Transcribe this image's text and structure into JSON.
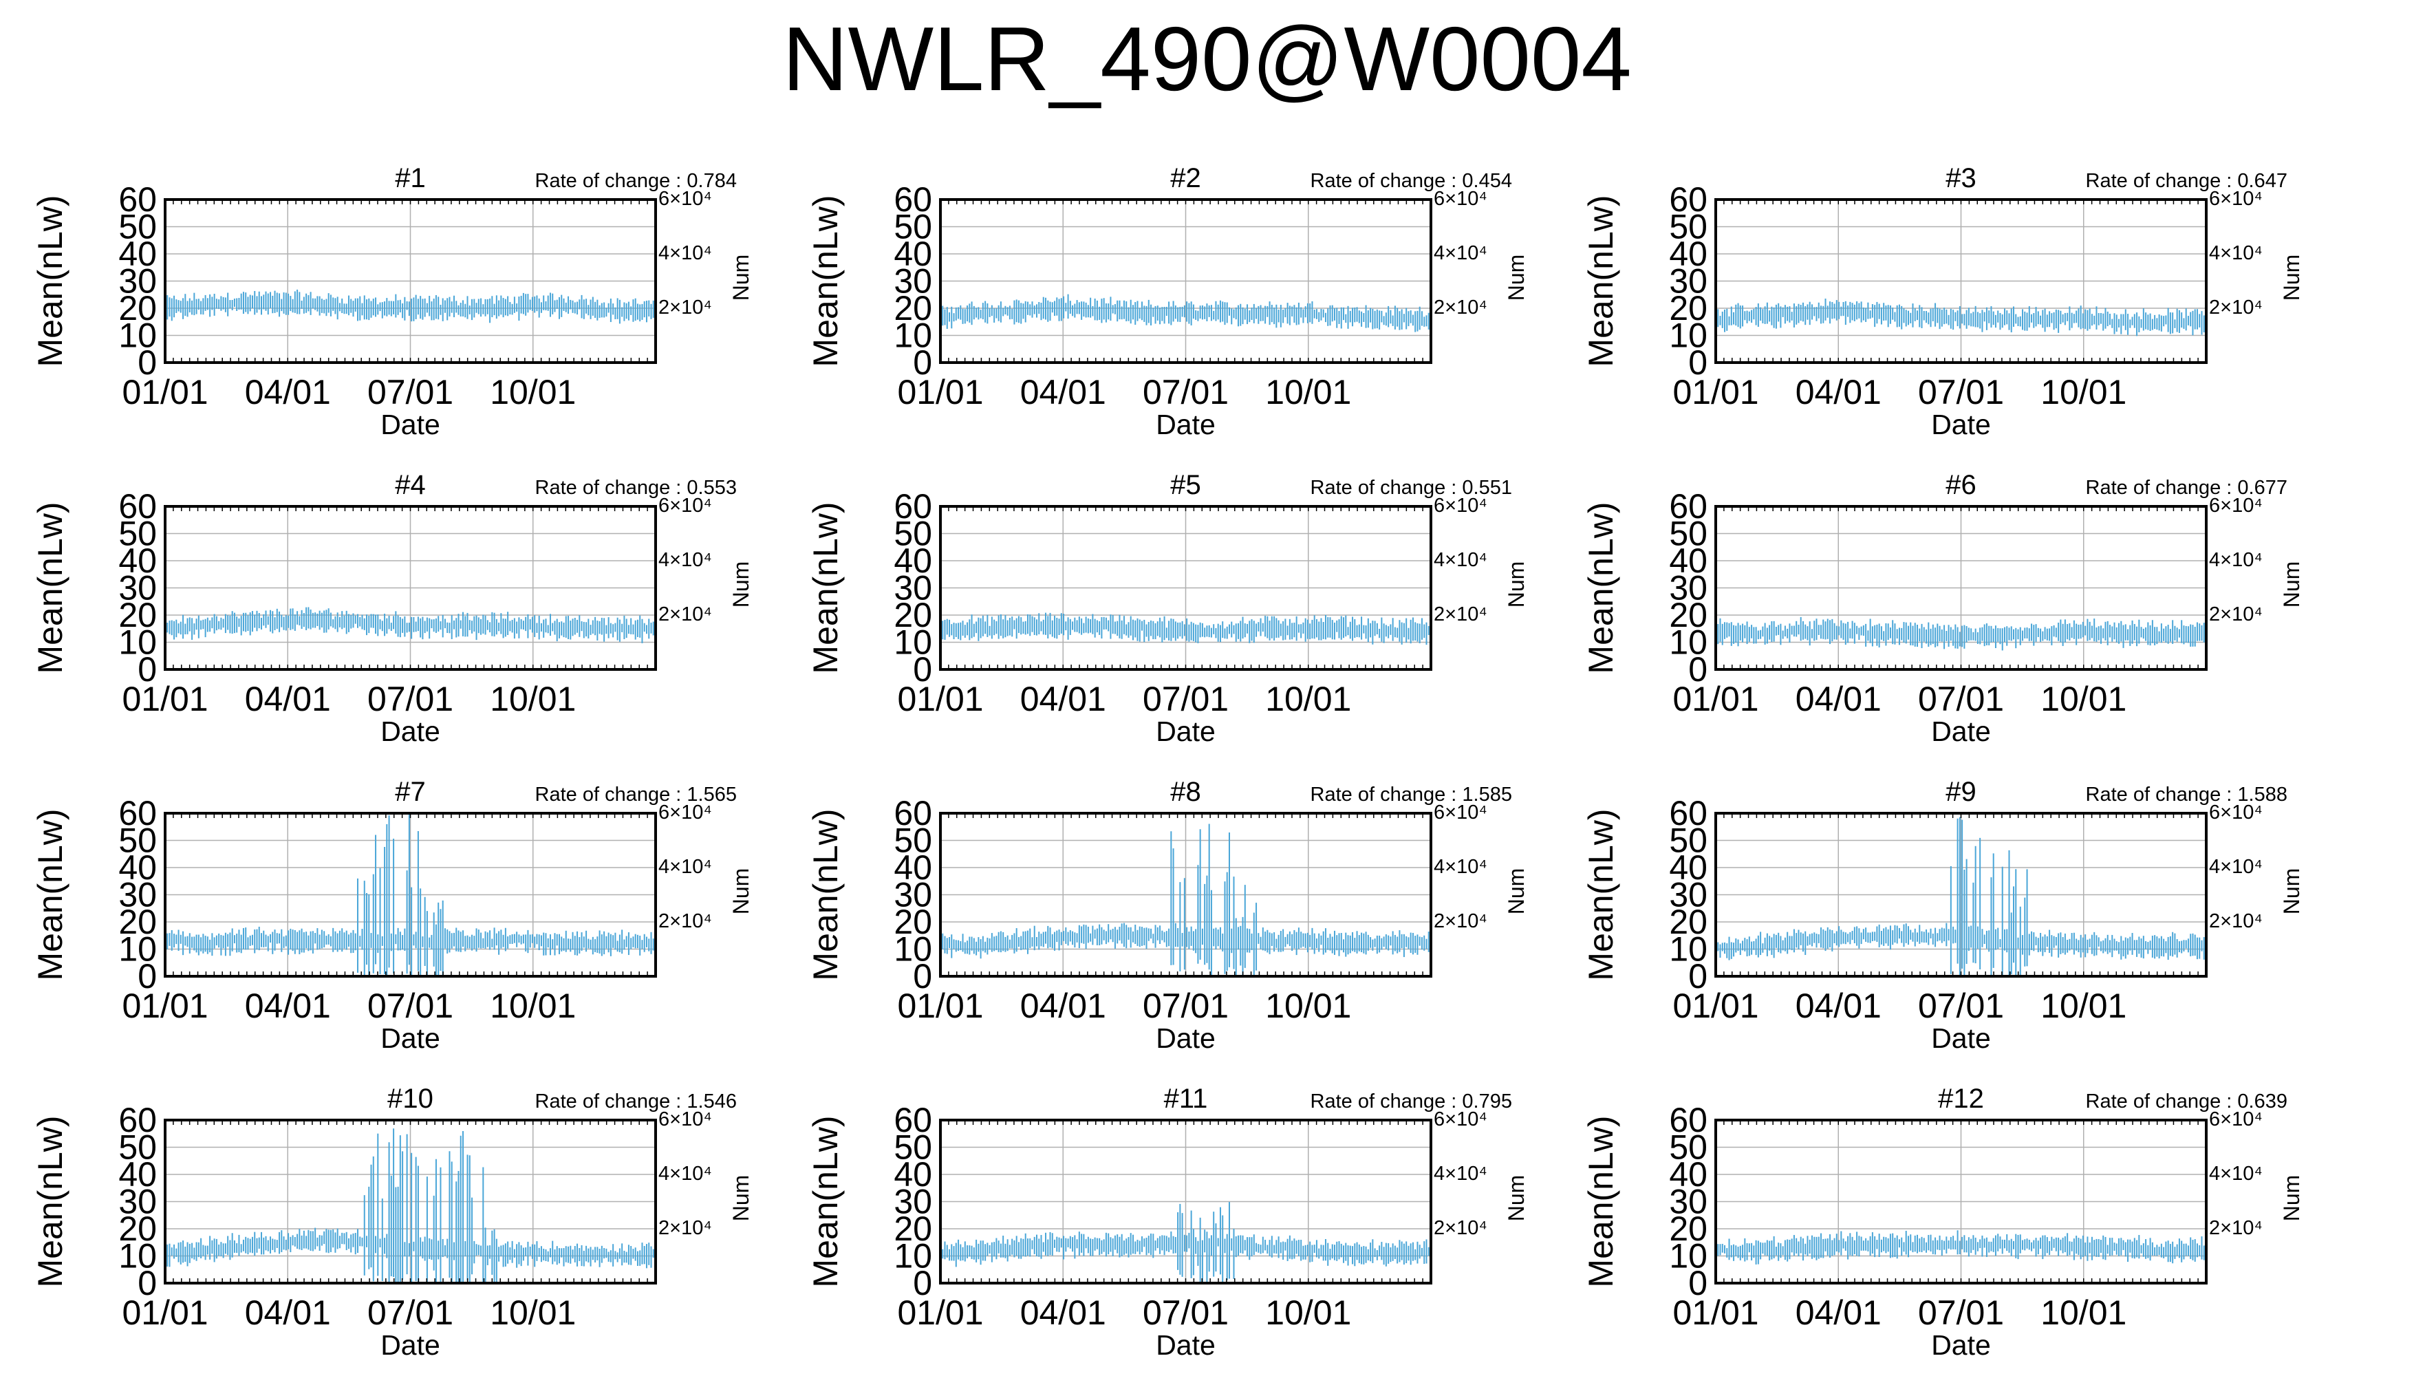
{
  "title": "NWLR_490@W0004",
  "panel_labels": {
    "y_left": "Mean(nLw)",
    "y_right": "Num",
    "x": "Date",
    "rate_prefix": "Rate of change : "
  },
  "colors": {
    "series": "#4aa6d8",
    "grid": "#b0b0b0",
    "axis": "#000000"
  },
  "chart_data": [
    {
      "type": "scatter",
      "panel_id": "#1",
      "rate_of_change": "0.784",
      "x_ticks": [
        "01/01",
        "04/01",
        "07/01",
        "10/01"
      ],
      "y_ticks": [
        0,
        10,
        20,
        30,
        40,
        50,
        60
      ],
      "y_right_ticks": [
        "2×10⁴",
        "4×10⁴",
        "6×10⁴"
      ],
      "ylim": [
        0,
        60
      ],
      "xlim_months": [
        0,
        12
      ],
      "grid": true,
      "baseline": [
        20,
        21,
        22,
        22,
        21,
        20,
        20,
        20,
        20,
        21,
        21,
        19
      ],
      "spread": 3,
      "spikes": []
    },
    {
      "type": "scatter",
      "panel_id": "#2",
      "rate_of_change": "0.454",
      "x_ticks": [
        "01/01",
        "04/01",
        "07/01",
        "10/01"
      ],
      "y_ticks": [
        0,
        10,
        20,
        30,
        40,
        50,
        60
      ],
      "y_right_ticks": [
        "2×10⁴",
        "4×10⁴",
        "6×10⁴"
      ],
      "ylim": [
        0,
        60
      ],
      "xlim_months": [
        0,
        12
      ],
      "grid": true,
      "baseline": [
        17,
        18,
        19,
        20,
        19,
        18,
        18,
        18,
        18,
        18,
        17,
        16
      ],
      "spread": 3,
      "spikes": []
    },
    {
      "type": "scatter",
      "panel_id": "#3",
      "rate_of_change": "0.647",
      "x_ticks": [
        "01/01",
        "04/01",
        "07/01",
        "10/01"
      ],
      "y_ticks": [
        0,
        10,
        20,
        30,
        40,
        50,
        60
      ],
      "y_right_ticks": [
        "2×10⁴",
        "4×10⁴",
        "6×10⁴"
      ],
      "ylim": [
        0,
        60
      ],
      "xlim_months": [
        0,
        12
      ],
      "grid": true,
      "baseline": [
        16,
        17,
        18,
        19,
        18,
        17,
        16,
        16,
        16,
        16,
        15,
        15
      ],
      "spread": 3,
      "spikes": []
    },
    {
      "type": "scatter",
      "panel_id": "#4",
      "rate_of_change": "0.553",
      "x_ticks": [
        "01/01",
        "04/01",
        "07/01",
        "10/01"
      ],
      "y_ticks": [
        0,
        10,
        20,
        30,
        40,
        50,
        60
      ],
      "y_right_ticks": [
        "2×10⁴",
        "4×10⁴",
        "6×10⁴"
      ],
      "ylim": [
        0,
        60
      ],
      "xlim_months": [
        0,
        12
      ],
      "grid": true,
      "baseline": [
        15,
        16,
        17,
        18,
        18,
        17,
        16,
        16,
        16,
        16,
        15,
        15
      ],
      "spread": 3,
      "spikes": []
    },
    {
      "type": "scatter",
      "panel_id": "#5",
      "rate_of_change": "0.551",
      "x_ticks": [
        "01/01",
        "04/01",
        "07/01",
        "10/01"
      ],
      "y_ticks": [
        0,
        10,
        20,
        30,
        40,
        50,
        60
      ],
      "y_right_ticks": [
        "2×10⁴",
        "4×10⁴",
        "6×10⁴"
      ],
      "ylim": [
        0,
        60
      ],
      "xlim_months": [
        0,
        12
      ],
      "grid": true,
      "baseline": [
        15,
        15,
        16,
        16,
        16,
        15,
        14,
        14,
        15,
        15,
        15,
        14
      ],
      "spread": 3,
      "spikes": []
    },
    {
      "type": "scatter",
      "panel_id": "#6",
      "rate_of_change": "0.677",
      "x_ticks": [
        "01/01",
        "04/01",
        "07/01",
        "10/01"
      ],
      "y_ticks": [
        0,
        10,
        20,
        30,
        40,
        50,
        60
      ],
      "y_right_ticks": [
        "2×10⁴",
        "4×10⁴",
        "6×10⁴"
      ],
      "ylim": [
        0,
        60
      ],
      "xlim_months": [
        0,
        12
      ],
      "grid": true,
      "baseline": [
        14,
        13,
        14,
        14,
        13,
        13,
        12,
        12,
        13,
        14,
        13,
        13
      ],
      "spread": 3,
      "spikes": []
    },
    {
      "type": "scatter",
      "panel_id": "#7",
      "rate_of_change": "1.565",
      "x_ticks": [
        "01/01",
        "04/01",
        "07/01",
        "10/01"
      ],
      "y_ticks": [
        0,
        10,
        20,
        30,
        40,
        50,
        60
      ],
      "y_right_ticks": [
        "2×10⁴",
        "4×10⁴",
        "6×10⁴"
      ],
      "ylim": [
        0,
        60
      ],
      "xlim_months": [
        0,
        12
      ],
      "grid": true,
      "baseline": [
        13,
        12,
        13,
        13,
        13,
        13,
        13,
        13,
        13,
        13,
        12,
        12
      ],
      "spread": 3,
      "spikes": [
        [
          4.7,
          6.2,
          60
        ],
        [
          6.2,
          6.8,
          35
        ]
      ]
    },
    {
      "type": "scatter",
      "panel_id": "#8",
      "rate_of_change": "1.585",
      "x_ticks": [
        "01/01",
        "04/01",
        "07/01",
        "10/01"
      ],
      "y_ticks": [
        0,
        10,
        20,
        30,
        40,
        50,
        60
      ],
      "y_right_ticks": [
        "2×10⁴",
        "4×10⁴",
        "6×10⁴"
      ],
      "ylim": [
        0,
        60
      ],
      "xlim_months": [
        0,
        12
      ],
      "grid": true,
      "baseline": [
        12,
        11,
        13,
        14,
        15,
        15,
        14,
        13,
        13,
        13,
        12,
        12
      ],
      "spread": 3,
      "spikes": [
        [
          5.5,
          7.2,
          60
        ],
        [
          7.2,
          7.8,
          35
        ]
      ]
    },
    {
      "type": "scatter",
      "panel_id": "#9",
      "rate_of_change": "1.588",
      "x_ticks": [
        "01/01",
        "04/01",
        "07/01",
        "10/01"
      ],
      "y_ticks": [
        0,
        10,
        20,
        30,
        40,
        50,
        60
      ],
      "y_right_ticks": [
        "2×10⁴",
        "4×10⁴",
        "6×10⁴"
      ],
      "ylim": [
        0,
        60
      ],
      "xlim_months": [
        0,
        12
      ],
      "grid": true,
      "baseline": [
        10,
        11,
        13,
        14,
        15,
        15,
        14,
        13,
        12,
        12,
        11,
        11
      ],
      "spread": 3,
      "spikes": [
        [
          5.5,
          7.2,
          60
        ],
        [
          7.2,
          7.8,
          40
        ]
      ]
    },
    {
      "type": "scatter",
      "panel_id": "#10",
      "rate_of_change": "1.546",
      "x_ticks": [
        "01/01",
        "04/01",
        "07/01",
        "10/01"
      ],
      "y_ticks": [
        0,
        10,
        20,
        30,
        40,
        50,
        60
      ],
      "y_right_ticks": [
        "2×10⁴",
        "4×10⁴",
        "6×10⁴"
      ],
      "ylim": [
        0,
        60
      ],
      "xlim_months": [
        0,
        12
      ],
      "grid": true,
      "baseline": [
        11,
        12,
        14,
        15,
        16,
        15,
        13,
        12,
        11,
        11,
        10,
        10
      ],
      "spread": 3,
      "spikes": [
        [
          4.8,
          7.8,
          60
        ],
        [
          7.8,
          8.2,
          30
        ]
      ]
    },
    {
      "type": "scatter",
      "panel_id": "#11",
      "rate_of_change": "0.795",
      "x_ticks": [
        "01/01",
        "04/01",
        "07/01",
        "10/01"
      ],
      "y_ticks": [
        0,
        10,
        20,
        30,
        40,
        50,
        60
      ],
      "y_right_ticks": [
        "2×10⁴",
        "4×10⁴",
        "6×10⁴"
      ],
      "ylim": [
        0,
        60
      ],
      "xlim_months": [
        0,
        12
      ],
      "grid": true,
      "baseline": [
        11,
        12,
        13,
        14,
        14,
        14,
        15,
        14,
        13,
        12,
        11,
        11
      ],
      "spread": 3,
      "spikes": [
        [
          5.8,
          7.2,
          30
        ]
      ]
    },
    {
      "type": "scatter",
      "panel_id": "#12",
      "rate_of_change": "0.639",
      "x_ticks": [
        "01/01",
        "04/01",
        "07/01",
        "10/01"
      ],
      "y_ticks": [
        0,
        10,
        20,
        30,
        40,
        50,
        60
      ],
      "y_right_ticks": [
        "2×10⁴",
        "4×10⁴",
        "6×10⁴"
      ],
      "ylim": [
        0,
        60
      ],
      "xlim_months": [
        0,
        12
      ],
      "grid": true,
      "baseline": [
        12,
        12,
        13,
        14,
        14,
        14,
        14,
        14,
        14,
        13,
        13,
        12
      ],
      "spread": 3,
      "spikes": []
    }
  ]
}
